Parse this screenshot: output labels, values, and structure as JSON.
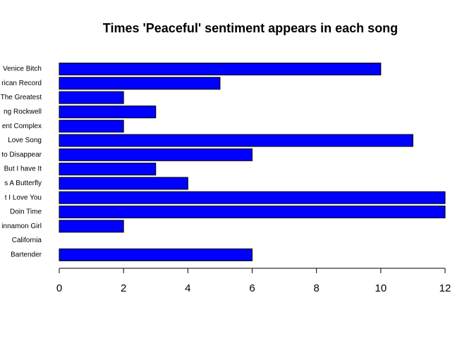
{
  "chart_data": {
    "type": "barh",
    "title": "Times 'Peaceful' sentiment appears in each song",
    "categories": [
      "Venice Bitch",
      "rican Record",
      "The Greatest",
      "ng Rockwell",
      "ent Complex",
      "Love Song",
      "to Disappear",
      "But I have It",
      "s A Butterfly",
      "t I Love You",
      "Doin Time",
      "innamon Girl",
      "California",
      "Bartender"
    ],
    "values": [
      10,
      5,
      2,
      3,
      2,
      11,
      6,
      3,
      4,
      12,
      12,
      2,
      0,
      6
    ],
    "color": "#0000ff",
    "xlim": [
      0,
      12
    ],
    "xticks": [
      0,
      2,
      4,
      6,
      8,
      10,
      12
    ]
  }
}
